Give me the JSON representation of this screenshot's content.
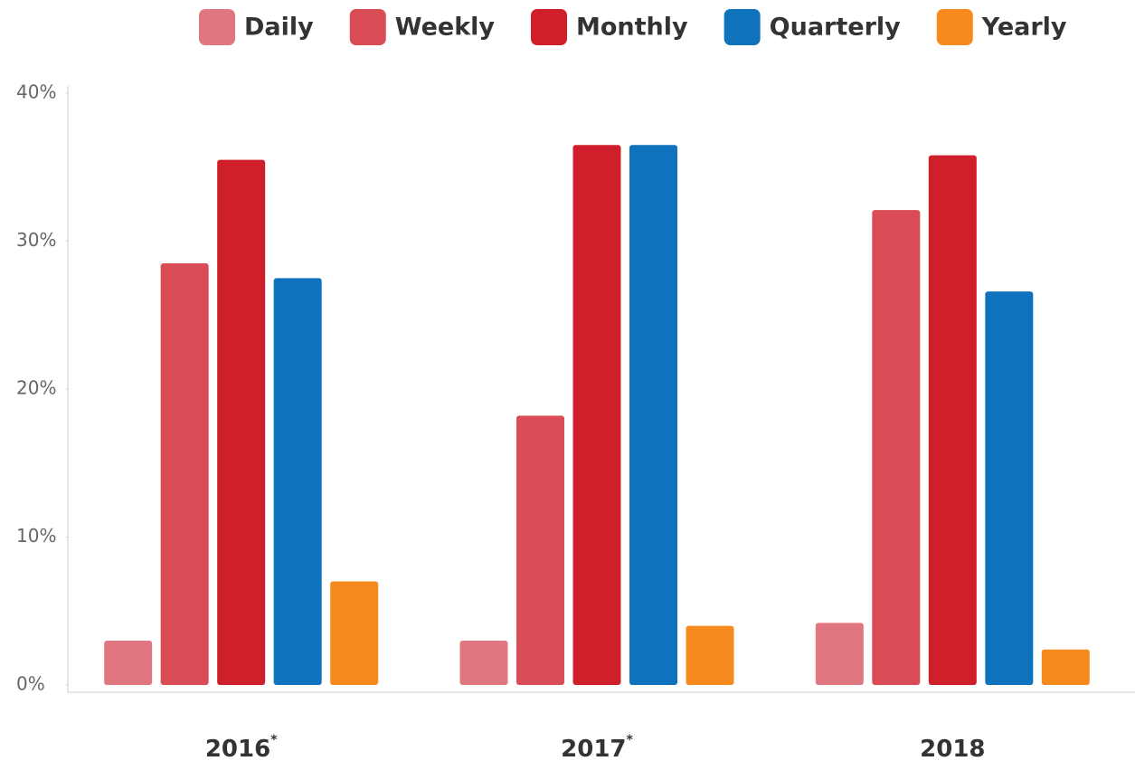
{
  "chart_data": {
    "type": "bar",
    "categories": [
      "2016",
      "2017",
      "2018"
    ],
    "category_notes": [
      "*",
      "*",
      null
    ],
    "series": [
      {
        "name": "Daily",
        "color": "#e07780",
        "values": [
          3.0,
          3.0,
          4.2
        ]
      },
      {
        "name": "Weekly",
        "color": "#d94c55",
        "values": [
          28.5,
          18.2,
          32.1
        ]
      },
      {
        "name": "Monthly",
        "color": "#cf1f2a",
        "values": [
          35.5,
          36.5,
          35.8
        ]
      },
      {
        "name": "Quarterly",
        "color": "#0f72bd",
        "values": [
          27.5,
          36.5,
          26.6
        ]
      },
      {
        "name": "Yearly",
        "color": "#f68a1f",
        "values": [
          7.0,
          4.0,
          2.4
        ]
      }
    ],
    "ylim": [
      0,
      40
    ],
    "yticks": [
      {
        "value": 0,
        "label": "0%"
      },
      {
        "value": 10,
        "label": "10%"
      },
      {
        "value": 20,
        "label": "20%"
      },
      {
        "value": 30,
        "label": "30%"
      },
      {
        "value": 40,
        "label": "40%"
      }
    ],
    "grid": false,
    "legend": "top"
  }
}
